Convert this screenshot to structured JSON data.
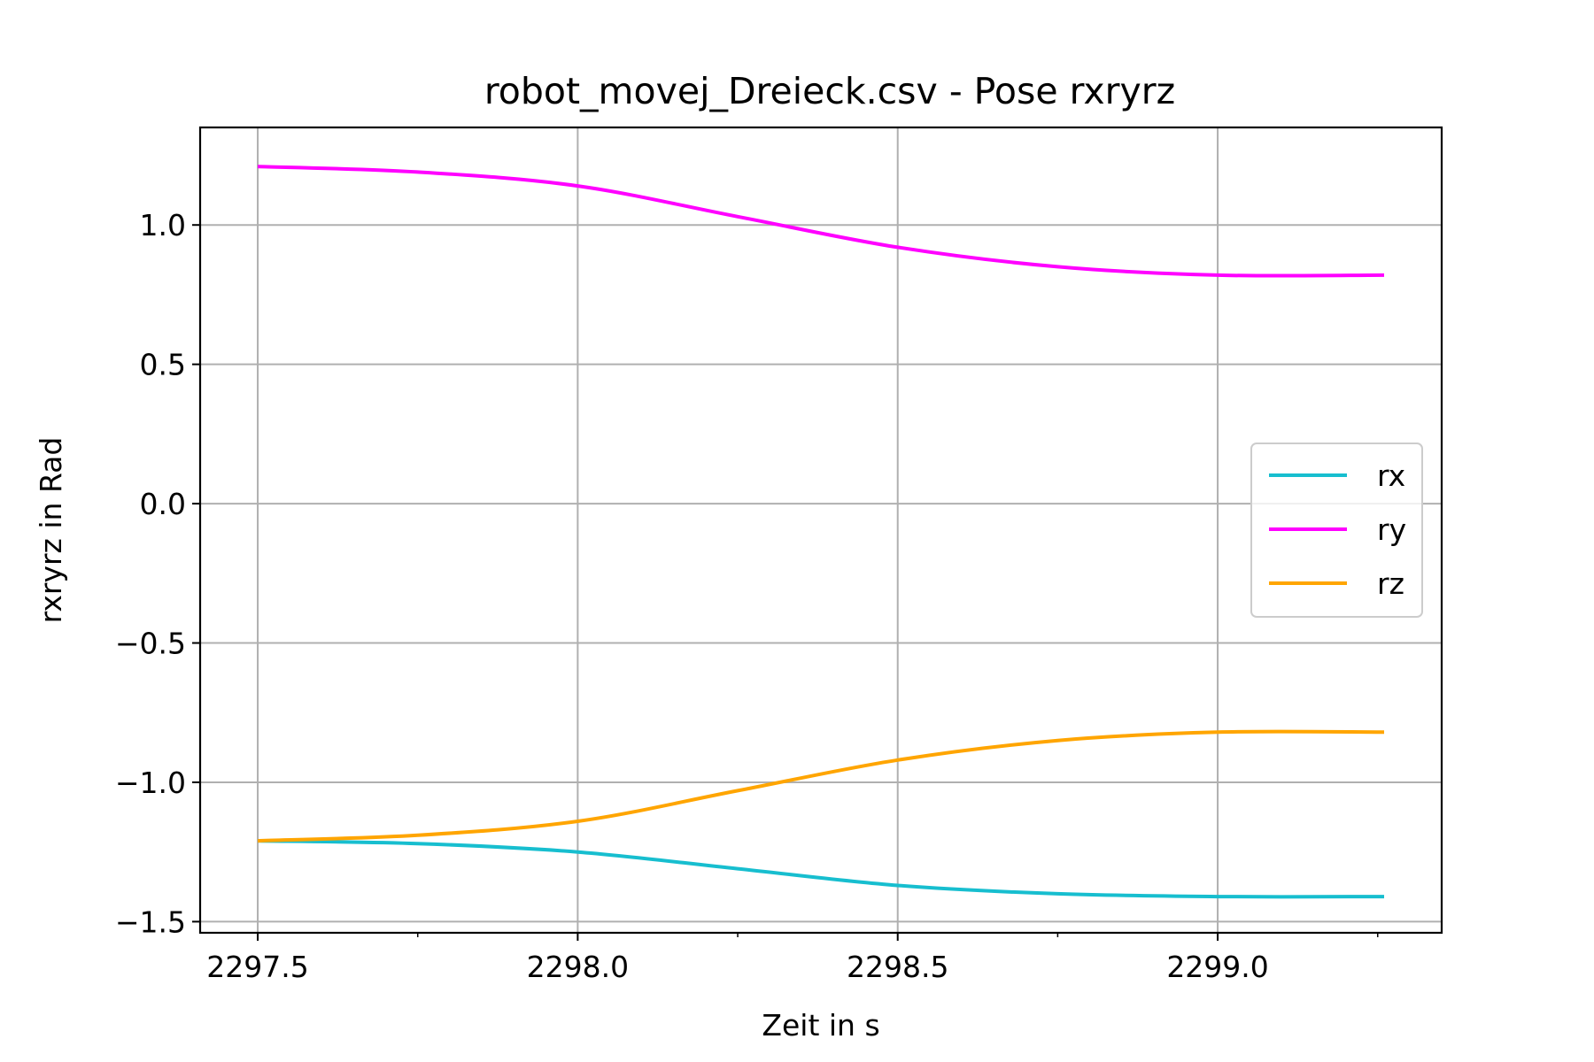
{
  "chart_data": {
    "type": "line",
    "title": "robot_movej_Dreieck.csv - Pose rxryrz",
    "xlabel": "Zeit in s",
    "ylabel": "rxryrz in Rad",
    "xlim": [
      2297.41,
      2299.35
    ],
    "ylim": [
      -1.54,
      1.35
    ],
    "xticks": [
      2297.5,
      2298.0,
      2298.5,
      2299.0
    ],
    "xtick_labels": [
      "2297.5",
      "2298.0",
      "2298.5",
      "2299.0"
    ],
    "xminor": [
      2297.75,
      2298.25,
      2298.75,
      2299.25
    ],
    "yticks": [
      1.0,
      0.5,
      0.0,
      -0.5,
      -1.0,
      -1.5
    ],
    "ytick_labels": [
      "1.0",
      "0.5",
      "0.0",
      "−0.5",
      "−1.0",
      "−1.5"
    ],
    "grid": true,
    "legend_position": "center-right",
    "series": [
      {
        "name": "rx",
        "color": "#17becf",
        "x": [
          2297.5,
          2297.75,
          2298.0,
          2298.25,
          2298.5,
          2298.75,
          2299.0,
          2299.26
        ],
        "y": [
          -1.21,
          -1.22,
          -1.25,
          -1.31,
          -1.37,
          -1.4,
          -1.41,
          -1.41
        ]
      },
      {
        "name": "ry",
        "color": "#ff00ff",
        "x": [
          2297.5,
          2297.75,
          2298.0,
          2298.25,
          2298.5,
          2298.75,
          2299.0,
          2299.26
        ],
        "y": [
          1.21,
          1.19,
          1.14,
          1.03,
          0.92,
          0.85,
          0.82,
          0.82
        ]
      },
      {
        "name": "rz",
        "color": "#ffa500",
        "x": [
          2297.5,
          2297.75,
          2298.0,
          2298.25,
          2298.5,
          2298.75,
          2299.0,
          2299.26
        ],
        "y": [
          -1.21,
          -1.19,
          -1.14,
          -1.03,
          -0.92,
          -0.85,
          -0.82,
          -0.82
        ]
      }
    ]
  }
}
